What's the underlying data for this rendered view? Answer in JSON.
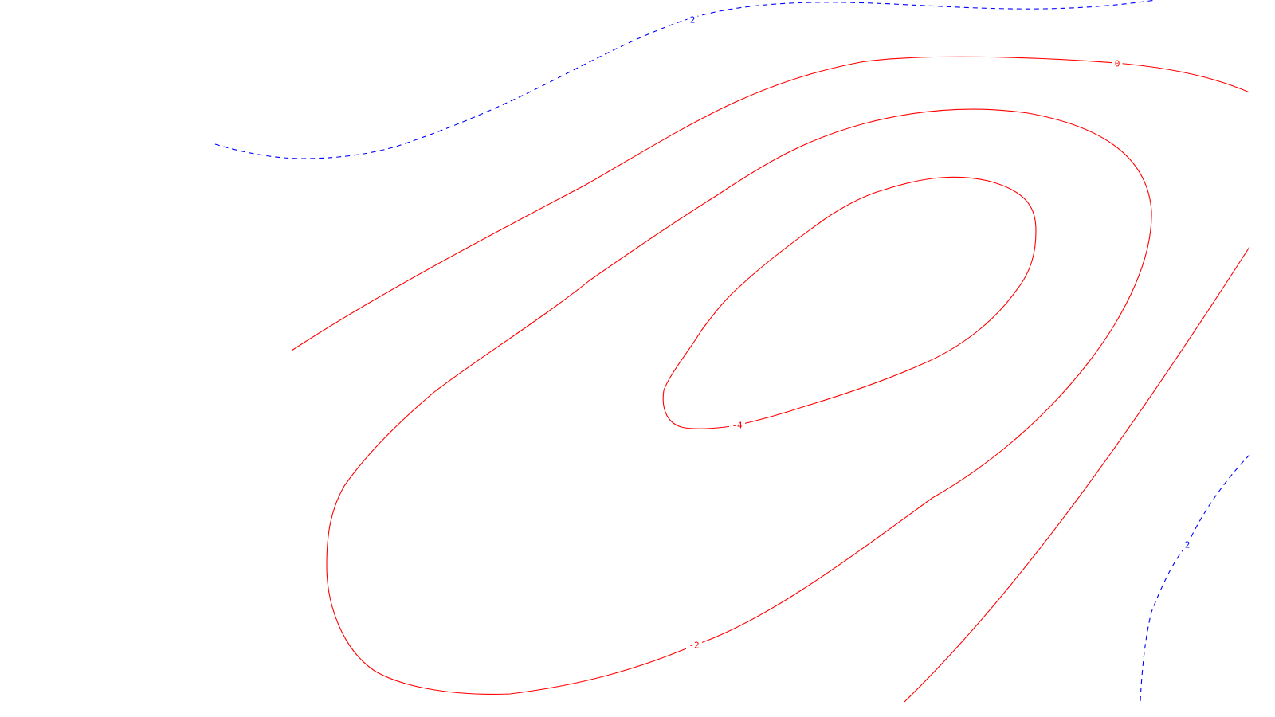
{
  "chart_data": {
    "type": "contour",
    "title": "",
    "xlabel": "",
    "ylabel": "",
    "grid": false,
    "legend": "none",
    "colors": {
      "positive": "#0000ff",
      "negative": "#ff0000",
      "zero": "#ff0000",
      "background": "#ffffff"
    },
    "line_styles": {
      "positive": "dashed",
      "negative": "solid",
      "zero": "solid"
    },
    "levels": [
      {
        "id": "top-2",
        "label": "2",
        "value": 2
      },
      {
        "id": "zero",
        "label": "0",
        "value": 0
      },
      {
        "id": "mid-neg2",
        "label": "-2",
        "value": -2
      },
      {
        "id": "inner-neg4",
        "label": "-4",
        "value": -4
      },
      {
        "id": "bottom-2",
        "label": "2",
        "value": 2
      }
    ]
  }
}
